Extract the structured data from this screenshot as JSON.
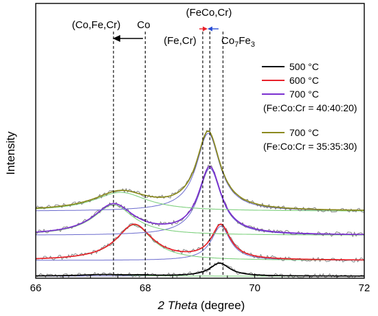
{
  "chart_data": {
    "type": "line",
    "xlabel_italic": "2 Theta",
    "xlabel_rest": " (degree)",
    "ylabel": "Intensity",
    "xlim": [
      66,
      72
    ],
    "xticks": [
      "66",
      "68",
      "70",
      "72"
    ],
    "legend_placement": "right",
    "legend": [
      {
        "label": "500 °C",
        "color": "#000000"
      },
      {
        "label": "600 °C",
        "color": "#e8212a"
      },
      {
        "label": "700 °C",
        "color": "#7b2fd0"
      },
      {
        "label": "(Fe:Co:Cr = 40:40:20)",
        "color": null
      },
      {
        "label": "700 °C",
        "color": "#8b8a1e"
      },
      {
        "label": "(Fe:Co:Cr = 35:35:30)",
        "color": null
      }
    ],
    "annotations": {
      "co_fe_cr": "(Co,Fe,Cr)",
      "co": "Co",
      "fe_cr": "(Fe,Cr)",
      "feco_cr": "(FeCo,Cr)",
      "co7fe3_prefix": "Co",
      "co7fe3_sub1": "7",
      "co7fe3_mid": "Fe",
      "co7fe3_sub2": "3"
    },
    "reference_lines_x": [
      67.42,
      68.0,
      69.05,
      69.18,
      69.42
    ],
    "series": [
      {
        "name": "500 °C",
        "color": "#000000",
        "baseline": 0.0,
        "peaks": [
          {
            "x": 67.25,
            "amp": 0.07,
            "w": 0.55
          },
          {
            "x": 67.95,
            "amp": 0.03,
            "w": 0.2
          },
          {
            "x": 69.36,
            "amp": 0.62,
            "w": 0.22
          }
        ]
      },
      {
        "name": "600 °C",
        "color": "#e8212a",
        "baseline": 0.75,
        "peaks": [
          {
            "x": 67.8,
            "amp": 1.7,
            "w": 0.4
          },
          {
            "x": 69.38,
            "amp": 1.63,
            "w": 0.21
          }
        ]
      },
      {
        "name": "700 °C (Fe:Co:Cr = 40:40:20)",
        "color": "#7b2fd0",
        "baseline": 1.95,
        "peaks": [
          {
            "x": 67.42,
            "amp": 1.45,
            "w": 0.45
          },
          {
            "x": 69.18,
            "amp": 3.2,
            "w": 0.25
          }
        ]
      },
      {
        "name": "700 °C (Fe:Co:Cr = 35:35:30)",
        "color": "#8b8a1e",
        "baseline": 3.1,
        "peaks": [
          {
            "x": 67.55,
            "amp": 0.9,
            "w": 0.6
          },
          {
            "x": 69.15,
            "amp": 3.72,
            "w": 0.26
          }
        ]
      }
    ],
    "fit_component_color": "#7ed07e",
    "fit_background_color": "#6a6acd",
    "raw_data_color": "#6e6e6e"
  }
}
